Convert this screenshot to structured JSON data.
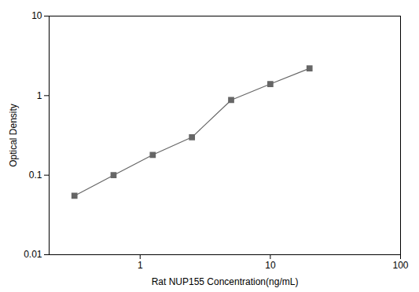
{
  "chart_data": {
    "type": "line",
    "x": [
      0.313,
      0.625,
      1.25,
      2.5,
      5.0,
      10.0,
      20.0
    ],
    "values": [
      0.055,
      0.1,
      0.18,
      0.3,
      0.88,
      1.4,
      2.2
    ],
    "xlabel": "Rat NUP155 Concentration(ng/mL)",
    "ylabel": "Optical Density",
    "xlim": [
      0.2,
      100
    ],
    "ylim": [
      0.01,
      10
    ],
    "xticks": [
      1,
      10,
      100
    ],
    "yticks": [
      0.01,
      0.1,
      1,
      10
    ],
    "log": true,
    "color": "#666666",
    "marker": "square"
  }
}
